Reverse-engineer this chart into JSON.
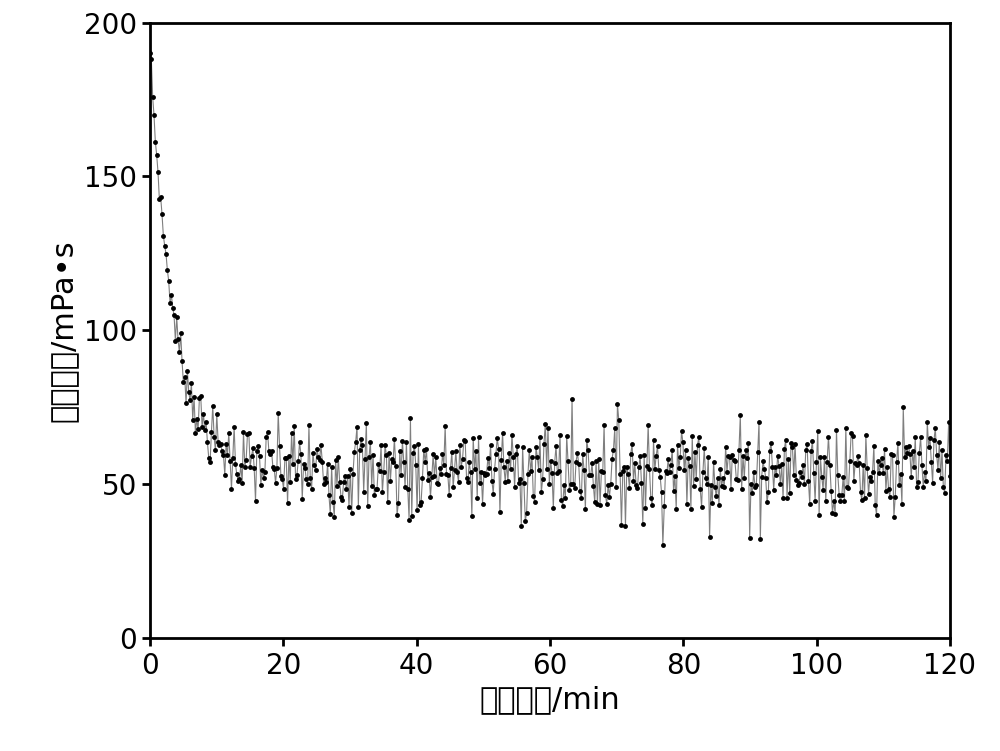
{
  "xlabel": "剫切时间/min",
  "ylabel": "表观粘度/mPa•s",
  "xlim": [
    0,
    120
  ],
  "ylim": [
    0,
    200
  ],
  "xticks": [
    0,
    20,
    40,
    60,
    80,
    100,
    120
  ],
  "yticks": [
    0,
    50,
    100,
    150,
    200
  ],
  "line_color": "#000000",
  "background_color": "#ffffff",
  "figsize": [
    10.0,
    7.51
  ],
  "dpi": 100,
  "xlabel_fontsize": 22,
  "ylabel_fontsize": 22,
  "tick_fontsize": 20,
  "initial_viscosity": 190,
  "plateau_viscosity": 55,
  "decay_rate": 0.28,
  "n_points": 600
}
